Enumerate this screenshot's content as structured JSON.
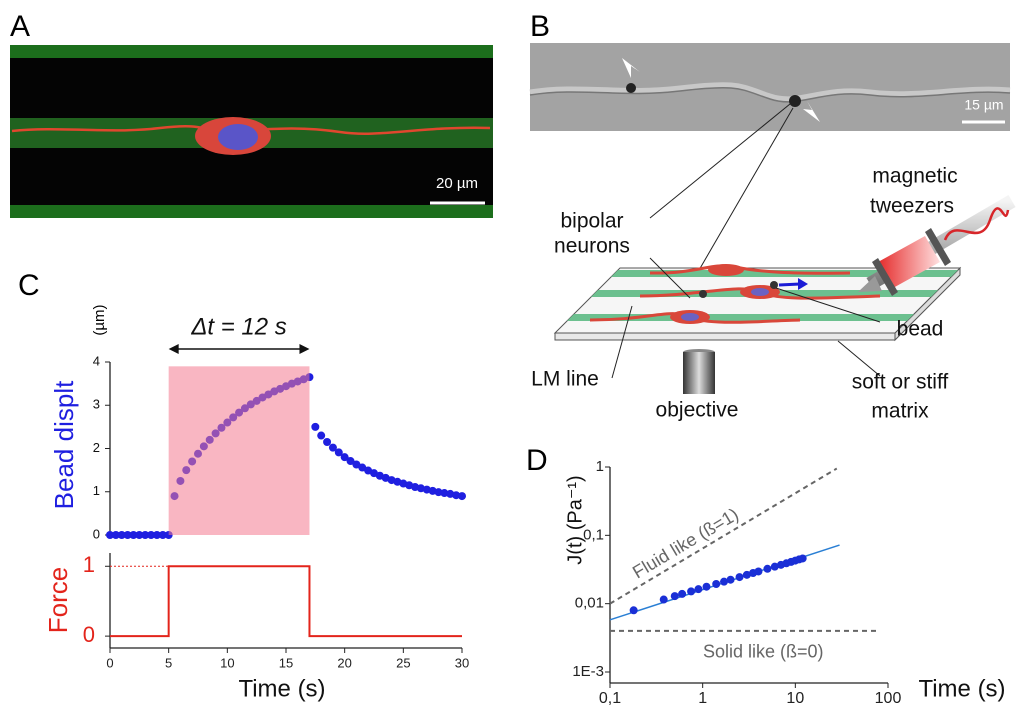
{
  "panels": {
    "A": {
      "label": "A",
      "scale_bar": "20 µm"
    },
    "B": {
      "label": "B",
      "scale_bar": "15 µm",
      "labels": [
        "magnetic",
        "tweezers",
        "bipolar",
        "neurons",
        "bead",
        "LM line",
        "objective",
        "soft or stiff",
        "matrix"
      ]
    },
    "C": {
      "label": "C"
    },
    "D": {
      "label": "D"
    }
  },
  "chart_data": [
    {
      "type": "scatter",
      "y_label": "Bead displt",
      "y_unit": "(µm)",
      "annotation": "Δt = 12 s",
      "color": "#1f1fe0",
      "highlight": {
        "x": [
          5,
          17
        ],
        "y": [
          0,
          3.9
        ],
        "color": "#f47a8f"
      },
      "xlim": [
        0,
        30
      ],
      "ylim": [
        0,
        4
      ],
      "yticks": [
        0,
        1,
        2,
        3,
        4
      ],
      "x": [
        0,
        0.5,
        1,
        1.5,
        2,
        2.5,
        3,
        3.5,
        4,
        4.5,
        5,
        5.5,
        6,
        6.5,
        7,
        7.5,
        8,
        8.5,
        9,
        9.5,
        10,
        10.5,
        11,
        11.5,
        12,
        12.5,
        13,
        13.5,
        14,
        14.5,
        15,
        15.5,
        16,
        16.5,
        17,
        17.5,
        18,
        18.5,
        19,
        19.5,
        20,
        20.5,
        21,
        21.5,
        22,
        22.5,
        23,
        23.5,
        24,
        24.5,
        25,
        25.5,
        26,
        26.5,
        27,
        27.5,
        28,
        28.5,
        29,
        29.5,
        30
      ],
      "values": [
        0,
        0,
        0,
        0,
        0,
        0,
        0,
        0,
        0,
        0,
        0,
        0.9,
        1.25,
        1.5,
        1.7,
        1.88,
        2.05,
        2.2,
        2.35,
        2.48,
        2.6,
        2.72,
        2.83,
        2.93,
        3.02,
        3.1,
        3.18,
        3.25,
        3.32,
        3.38,
        3.44,
        3.5,
        3.55,
        3.6,
        3.65,
        2.5,
        2.3,
        2.15,
        2.02,
        1.91,
        1.8,
        1.71,
        1.63,
        1.56,
        1.49,
        1.43,
        1.37,
        1.32,
        1.27,
        1.23,
        1.19,
        1.15,
        1.11,
        1.08,
        1.05,
        1.02,
        0.99,
        0.97,
        0.95,
        0.92,
        0.9
      ]
    },
    {
      "type": "line",
      "y_label": "Force",
      "x_label": "Time (s)",
      "color": "#e3241b",
      "reference_level": 1,
      "xlim": [
        0,
        30
      ],
      "ylim": [
        -0.17,
        1.19
      ],
      "xticks": [
        0,
        5,
        10,
        15,
        20,
        25,
        30
      ],
      "yticks": [
        0,
        1
      ],
      "x": [
        0,
        5,
        5,
        17,
        17,
        30
      ],
      "values": [
        0,
        0,
        1,
        1,
        0,
        0
      ]
    },
    {
      "type": "scatter",
      "log_x": true,
      "log_y": true,
      "y_label": "J(t) (Pa⁻¹)",
      "x_label": "Time (s)",
      "color": "#1a2fd6",
      "xlim": [
        0.1,
        100
      ],
      "ylim": [
        0.001,
        1
      ],
      "xticks": [
        {
          "value": 0.1,
          "label": "0,1"
        },
        1,
        10,
        100
      ],
      "yticks": [
        {
          "value": 0.001,
          "label": "1E-3"
        },
        {
          "value": 0.01,
          "label": "0,01"
        },
        {
          "value": 0.1,
          "label": "0,1"
        },
        1
      ],
      "x": [
        0.18,
        0.38,
        0.5,
        0.6,
        0.75,
        0.9,
        1.1,
        1.4,
        1.7,
        2,
        2.5,
        3,
        3.5,
        4,
        5,
        6,
        7,
        8,
        9,
        10,
        11,
        12
      ],
      "values": [
        0.008,
        0.0115,
        0.0129,
        0.0139,
        0.0151,
        0.0163,
        0.0177,
        0.0194,
        0.021,
        0.0224,
        0.0245,
        0.0264,
        0.0281,
        0.0296,
        0.0324,
        0.0348,
        0.037,
        0.039,
        0.0409,
        0.0427,
        0.0444,
        0.0459
      ],
      "fit": {
        "x": [
          0.1,
          30
        ],
        "values": [
          0.0058,
          0.072
        ],
        "color": "#2a7fd4"
      },
      "references": [
        {
          "name": "Fluid like (ß=1)",
          "x": [
            0.1,
            28
          ],
          "values": [
            0.01,
            0.95
          ]
        },
        {
          "name": "Solid like (ß=0)",
          "x": [
            0.1,
            75
          ],
          "values": [
            0.004,
            0.004
          ]
        }
      ]
    }
  ]
}
